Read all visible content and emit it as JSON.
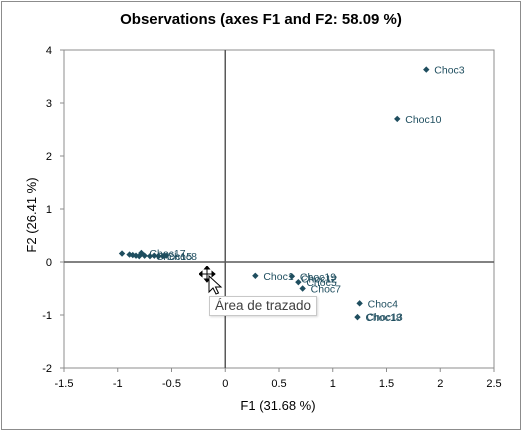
{
  "chart_data": {
    "type": "scatter",
    "title": "Observations (axes F1 and F2: 58.09 %)",
    "xlabel": "F1 (31.68 %)",
    "ylabel": "F2 (26.41 %)",
    "xlim": [
      -1.5,
      2.5
    ],
    "ylim": [
      -2,
      4
    ],
    "xticks": [
      -1.5,
      -1,
      -0.5,
      0,
      0.5,
      1,
      1.5,
      2,
      2.5
    ],
    "yticks": [
      -2,
      -1,
      0,
      1,
      2,
      3,
      4
    ],
    "xtick_labels": [
      "-1.5",
      "-1",
      "-0.5",
      "0",
      "0.5",
      "1",
      "1.5",
      "2",
      "2.5"
    ],
    "ytick_labels": [
      "-2",
      "-1",
      "0",
      "1",
      "2",
      "3",
      "4"
    ],
    "grid": false,
    "marker_color": "#1f4e5f",
    "label_color": "#1f4e5f",
    "points": [
      {
        "label": "Choc3",
        "x": 1.87,
        "y": 3.63
      },
      {
        "label": "Choc10",
        "x": 1.6,
        "y": 2.7
      },
      {
        "label": "Choc19",
        "x": 0.62,
        "y": -0.27
      },
      {
        "label": "Choc1",
        "x": 0.28,
        "y": -0.26
      },
      {
        "label": "Choc5",
        "x": 0.68,
        "y": -0.38
      },
      {
        "label": "Choc7",
        "x": 0.72,
        "y": -0.5
      },
      {
        "label": "Choc4",
        "x": 1.25,
        "y": -0.78
      },
      {
        "label": "Choc18",
        "x": 1.23,
        "y": -1.04
      },
      {
        "label": "Choc17",
        "x": -0.78,
        "y": 0.17
      },
      {
        "label": "",
        "x": -0.96,
        "y": 0.16
      },
      {
        "label": "",
        "x": -0.89,
        "y": 0.14
      },
      {
        "label": "",
        "x": -0.86,
        "y": 0.13
      },
      {
        "label": "",
        "x": -0.83,
        "y": 0.12
      },
      {
        "label": "",
        "x": -0.8,
        "y": 0.11
      },
      {
        "label": "",
        "x": -0.75,
        "y": 0.12
      },
      {
        "label": "",
        "x": -0.7,
        "y": 0.11
      },
      {
        "label": "",
        "x": -0.66,
        "y": 0.12
      },
      {
        "label": "",
        "x": -0.62,
        "y": 0.11
      },
      {
        "label": "",
        "x": -0.58,
        "y": 0.11
      },
      {
        "label": "",
        "x": -0.55,
        "y": 0.12
      }
    ],
    "overlap_labels": [
      {
        "label": "Choc15",
        "x": -0.72,
        "y": 0.11
      },
      {
        "label": "Choc8",
        "x": -0.62,
        "y": 0.11
      },
      {
        "label": "Choc12",
        "x": 0.63,
        "y": -0.31
      },
      {
        "label": "Choc13",
        "x": 1.24,
        "y": -1.03
      }
    ]
  },
  "tooltip": {
    "text": "Área de trazado"
  }
}
